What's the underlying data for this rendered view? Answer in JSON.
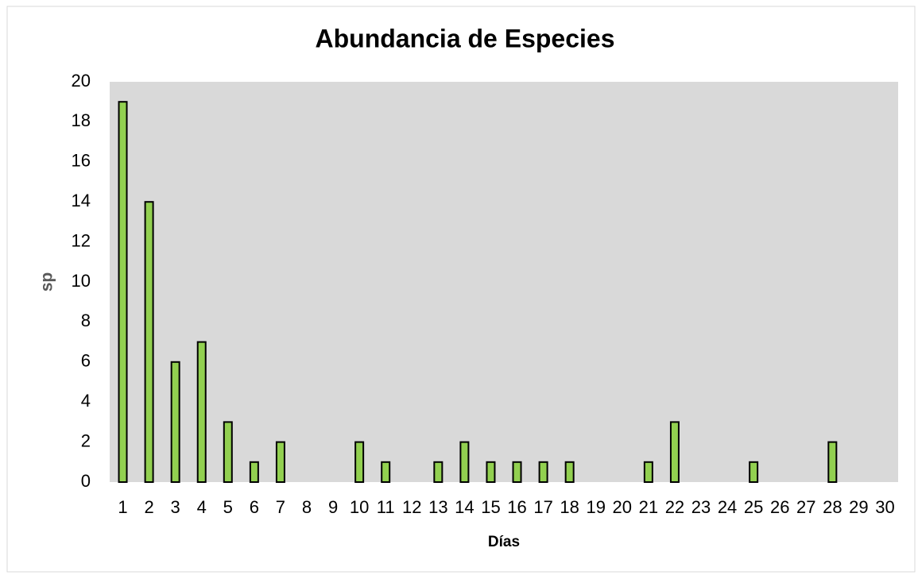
{
  "chart_data": {
    "type": "bar",
    "title": "Abundancia de Especies",
    "x_label": "Días",
    "y_label": "sp",
    "categories": [
      "1",
      "2",
      "3",
      "4",
      "5",
      "6",
      "7",
      "8",
      "9",
      "10",
      "11",
      "12",
      "13",
      "14",
      "15",
      "16",
      "17",
      "18",
      "19",
      "20",
      "21",
      "22",
      "23",
      "24",
      "25",
      "26",
      "27",
      "28",
      "29",
      "30"
    ],
    "values": [
      19,
      14,
      6,
      7,
      3,
      1,
      2,
      0,
      0,
      2,
      1,
      0,
      1,
      2,
      1,
      1,
      1,
      1,
      0,
      0,
      1,
      3,
      0,
      0,
      1,
      0,
      0,
      2,
      0,
      0
    ],
    "color": "#92d050",
    "ylim": [
      0,
      20
    ],
    "yticks": [
      0,
      2,
      4,
      6,
      8,
      10,
      12,
      14,
      16,
      18,
      20
    ],
    "grid": false
  }
}
